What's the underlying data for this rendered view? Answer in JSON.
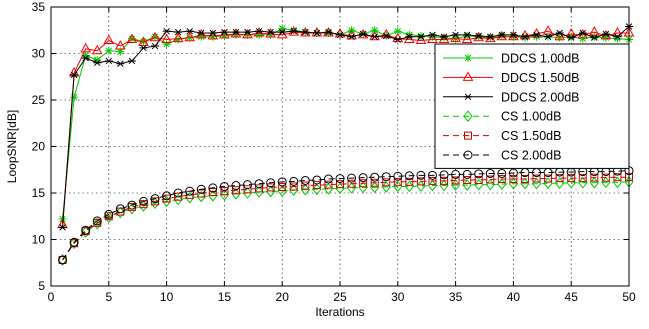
{
  "chart_data": {
    "type": "line",
    "title": "",
    "xlabel": "Iterations",
    "ylabel": "LoopSNR[dB]",
    "xlim": [
      0,
      50
    ],
    "ylim": [
      5,
      35
    ],
    "xticks": [
      0,
      5,
      10,
      15,
      20,
      25,
      30,
      35,
      40,
      45,
      50
    ],
    "yticks": [
      5,
      10,
      15,
      20,
      25,
      30,
      35
    ],
    "grid": "dashed",
    "legend_position": "right",
    "x": [
      1,
      2,
      3,
      4,
      5,
      6,
      7,
      8,
      9,
      10,
      11,
      12,
      13,
      14,
      15,
      16,
      17,
      18,
      19,
      20,
      21,
      22,
      23,
      24,
      25,
      26,
      27,
      28,
      29,
      30,
      31,
      32,
      33,
      34,
      35,
      36,
      37,
      38,
      39,
      40,
      41,
      42,
      43,
      44,
      45,
      46,
      47,
      48,
      49,
      50
    ],
    "series": [
      {
        "name": "DDCS 1.00dB",
        "color": "#00cc00",
        "line": "solid",
        "marker": "star",
        "values": [
          12.2,
          25.3,
          29.8,
          29.3,
          30.3,
          30.2,
          31.6,
          31.3,
          31.8,
          31.0,
          31.5,
          31.7,
          31.8,
          31.8,
          31.9,
          32.0,
          32.0,
          32.0,
          32.0,
          32.7,
          32.5,
          32.3,
          32.2,
          32.2,
          32.0,
          32.5,
          32.1,
          32.5,
          31.9,
          32.4,
          32.0,
          31.9,
          31.8,
          31.7,
          31.6,
          31.9,
          31.8,
          31.7,
          31.9,
          31.8,
          31.7,
          31.8,
          31.8,
          31.7,
          31.8,
          31.6,
          31.8,
          31.7,
          31.6,
          31.5
        ]
      },
      {
        "name": "DDCS 1.50dB",
        "color": "#ff0000",
        "line": "solid",
        "marker": "triangle",
        "values": [
          11.6,
          27.9,
          30.5,
          30.3,
          31.4,
          30.8,
          31.5,
          31.2,
          31.7,
          31.5,
          31.6,
          31.7,
          32.0,
          31.9,
          32.0,
          32.1,
          32.0,
          32.2,
          32.1,
          32.0,
          32.3,
          32.2,
          32.2,
          32.2,
          32.1,
          31.9,
          32.0,
          31.8,
          32.0,
          31.6,
          31.5,
          31.4,
          31.5,
          31.5,
          31.6,
          31.5,
          31.7,
          31.6,
          31.8,
          31.8,
          31.9,
          32.1,
          32.4,
          31.8,
          32.1,
          32.0,
          32.3,
          31.9,
          32.2,
          32.2
        ]
      },
      {
        "name": "DDCS 2.00dB",
        "color": "#000000",
        "line": "solid",
        "marker": "asterisk",
        "values": [
          11.3,
          27.7,
          29.5,
          29.0,
          29.2,
          28.9,
          29.2,
          30.6,
          30.8,
          32.4,
          32.3,
          32.4,
          32.2,
          32.2,
          32.3,
          32.3,
          32.3,
          32.4,
          32.3,
          32.3,
          32.4,
          32.3,
          32.2,
          32.3,
          32.0,
          31.8,
          32.1,
          31.8,
          31.9,
          31.5,
          31.8,
          31.8,
          32.0,
          31.8,
          32.0,
          32.0,
          31.9,
          31.8,
          32.0,
          32.0,
          31.8,
          32.0,
          31.8,
          32.2,
          31.7,
          32.2,
          31.7,
          32.1,
          31.8,
          32.9
        ]
      },
      {
        "name": "CS 1.00dB",
        "color": "#00cc00",
        "line": "dashed",
        "marker": "diamond",
        "values": [
          7.8,
          9.6,
          10.8,
          11.7,
          12.4,
          12.9,
          13.3,
          13.6,
          13.9,
          14.1,
          14.3,
          14.5,
          14.6,
          14.7,
          14.8,
          14.9,
          15.0,
          15.1,
          15.15,
          15.2,
          15.3,
          15.35,
          15.4,
          15.45,
          15.5,
          15.55,
          15.6,
          15.6,
          15.65,
          15.7,
          15.7,
          15.75,
          15.8,
          15.8,
          15.85,
          15.85,
          15.9,
          15.9,
          15.95,
          16.0,
          16.0,
          16.0,
          16.05,
          16.05,
          16.1,
          16.1,
          16.1,
          16.15,
          16.15,
          16.2
        ]
      },
      {
        "name": "CS 1.50dB",
        "color": "#cc0000",
        "line": "dashed",
        "marker": "square",
        "values": [
          7.8,
          9.6,
          10.9,
          11.8,
          12.5,
          13.0,
          13.5,
          13.8,
          14.1,
          14.4,
          14.6,
          14.8,
          14.95,
          15.1,
          15.2,
          15.3,
          15.4,
          15.5,
          15.6,
          15.65,
          15.7,
          15.8,
          15.85,
          15.9,
          15.95,
          16.0,
          16.05,
          16.1,
          16.15,
          16.2,
          16.2,
          16.25,
          16.3,
          16.3,
          16.35,
          16.4,
          16.4,
          16.45,
          16.5,
          16.5,
          16.5,
          16.55,
          16.55,
          16.6,
          16.6,
          16.6,
          16.65,
          16.65,
          16.7,
          16.7
        ]
      },
      {
        "name": "CS 2.00dB",
        "color": "#000000",
        "line": "dashed",
        "marker": "circle",
        "values": [
          7.8,
          9.7,
          11.0,
          12.0,
          12.7,
          13.3,
          13.7,
          14.1,
          14.4,
          14.7,
          15.0,
          15.2,
          15.4,
          15.55,
          15.7,
          15.8,
          15.9,
          16.0,
          16.1,
          16.2,
          16.25,
          16.35,
          16.4,
          16.5,
          16.55,
          16.6,
          16.65,
          16.7,
          16.75,
          16.8,
          16.85,
          16.9,
          16.9,
          16.95,
          17.0,
          17.0,
          17.05,
          17.1,
          17.1,
          17.15,
          17.2,
          17.2,
          17.2,
          17.25,
          17.25,
          17.3,
          17.3,
          17.3,
          17.35,
          17.4
        ]
      }
    ]
  }
}
